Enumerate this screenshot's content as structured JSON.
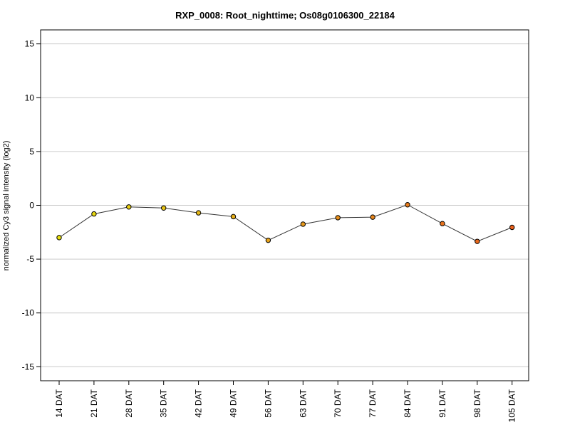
{
  "chart_data": {
    "type": "line",
    "title": "RXP_0008: Root_nighttime; Os08g0106300_22184",
    "xlabel": "",
    "ylabel": "normalized Cy3 signal intensity (log2)",
    "categories": [
      "14 DAT",
      "21 DAT",
      "28 DAT",
      "35 DAT",
      "42 DAT",
      "49 DAT",
      "56 DAT",
      "63 DAT",
      "70 DAT",
      "77 DAT",
      "84 DAT",
      "91 DAT",
      "98 DAT",
      "105 DAT"
    ],
    "series": [
      {
        "values": [
          -3.0,
          -0.8,
          -0.15,
          -0.25,
          -0.7,
          -1.05,
          -3.25,
          -1.75,
          -1.15,
          -1.1,
          0.05,
          -1.7,
          -3.35,
          -2.05
        ],
        "point_colors": [
          "#E8E010",
          "#E8D812",
          "#E8CE14",
          "#E8C416",
          "#E8BA18",
          "#E8B01A",
          "#E8A41C",
          "#E89A1C",
          "#E8901C",
          "#E8861C",
          "#E87C1C",
          "#E8721C",
          "#E8681C",
          "#E8601C"
        ]
      }
    ],
    "yticks": [
      -15,
      -10,
      -5,
      0,
      5,
      10,
      15
    ],
    "ytick_labels": [
      "-15",
      "-10",
      "-5",
      "0",
      "5",
      "10",
      "15"
    ],
    "ylim": [
      -16.3,
      16.3
    ],
    "grid": "horizontal",
    "legend": "none",
    "colors": {
      "line": "#333333",
      "grid": "#cccccc",
      "point_edge": "#000000"
    }
  }
}
